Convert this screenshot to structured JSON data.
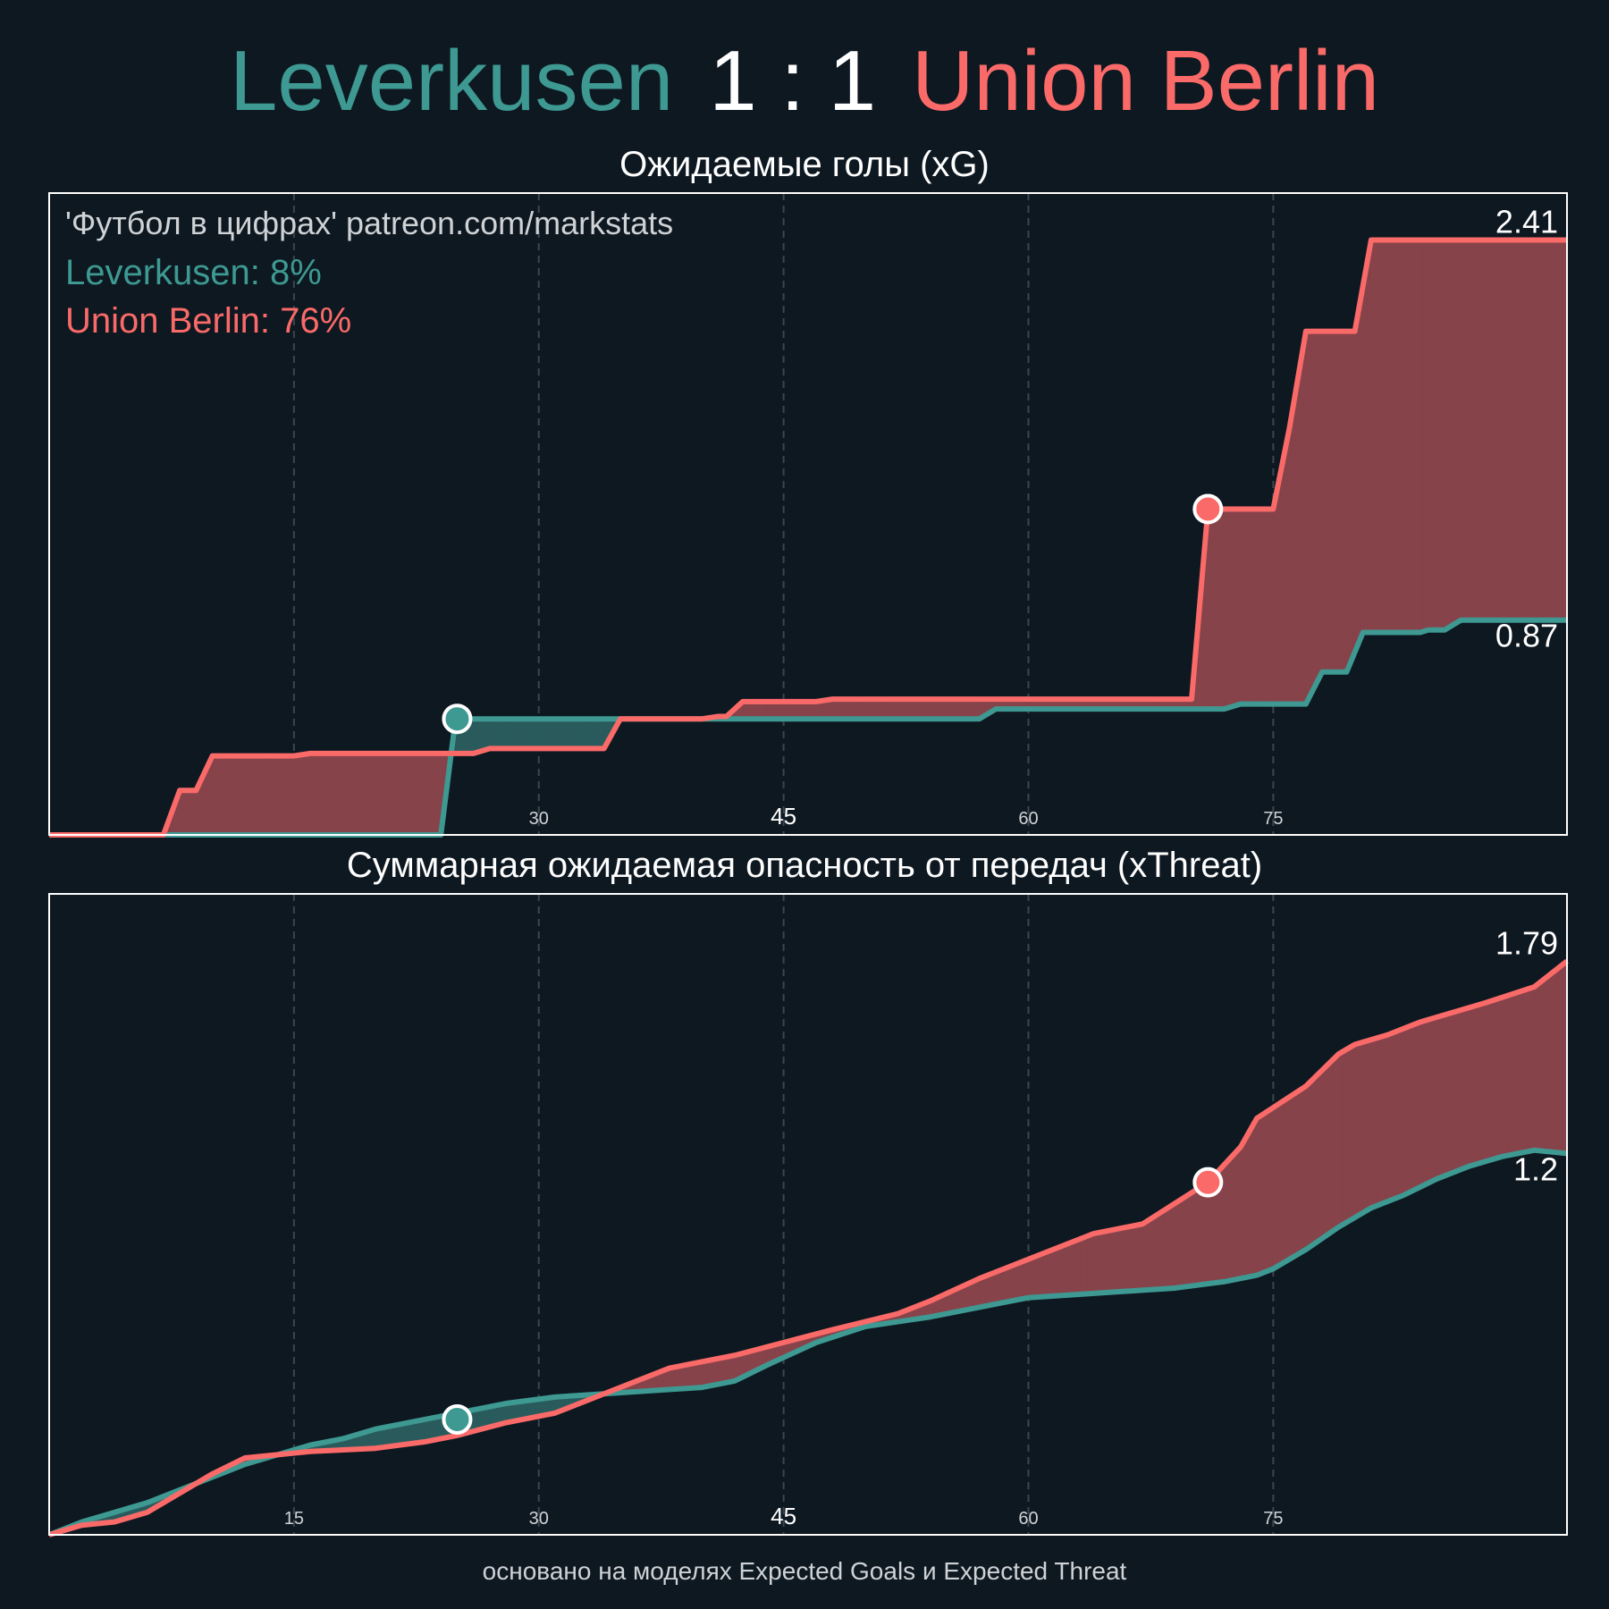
{
  "header": {
    "home_team": "Leverkusen",
    "score": "1 : 1",
    "away_team": "Union Berlin"
  },
  "footer": "основано на моделях Expected Goals и Expected Threat",
  "colors": {
    "background": "#0e1821",
    "home": "#3d9992",
    "away": "#fa6a68",
    "away_fill": "#87434a",
    "home_fill": "#2a5b5c"
  },
  "chart_data": [
    {
      "type": "line",
      "title": "Ожидаемые голы (xG)",
      "watermark": "'Футбол в цифрах' patreon.com/markstats",
      "legend": [
        "Leverkusen: 8%",
        "Union Berlin: 76%"
      ],
      "xlim": [
        0,
        93
      ],
      "ylim": [
        0,
        2.6
      ],
      "x_ticks": [
        "15",
        "30",
        "45",
        "60",
        "75"
      ],
      "x_tick_values": [
        15,
        30,
        45,
        60,
        75
      ],
      "grid": "vertical dashed",
      "end_labels": [
        "0.87",
        "2.41"
      ],
      "goals": [
        {
          "team": "Leverkusen",
          "minute": 25,
          "value": 0.47
        },
        {
          "team": "Union Berlin",
          "minute": 71,
          "value": 1.32
        }
      ],
      "series": [
        {
          "name": "Leverkusen",
          "points": [
            [
              0,
              0
            ],
            [
              24,
              0
            ],
            [
              24.9,
              0.47
            ],
            [
              25.5,
              0.47
            ],
            [
              57,
              0.47
            ],
            [
              58,
              0.51
            ],
            [
              72,
              0.51
            ],
            [
              73,
              0.53
            ],
            [
              77,
              0.53
            ],
            [
              78,
              0.66
            ],
            [
              79.5,
              0.66
            ],
            [
              80.5,
              0.82
            ],
            [
              84,
              0.82
            ],
            [
              84.5,
              0.83
            ],
            [
              85.5,
              0.83
            ],
            [
              86.5,
              0.87
            ],
            [
              93,
              0.87
            ]
          ]
        },
        {
          "name": "Union Berlin",
          "points": [
            [
              0,
              0
            ],
            [
              7,
              0
            ],
            [
              8,
              0.18
            ],
            [
              9,
              0.18
            ],
            [
              10,
              0.32
            ],
            [
              15,
              0.32
            ],
            [
              16,
              0.33
            ],
            [
              26,
              0.33
            ],
            [
              27,
              0.35
            ],
            [
              34,
              0.35
            ],
            [
              35,
              0.47
            ],
            [
              40,
              0.47
            ],
            [
              41,
              0.48
            ],
            [
              41.5,
              0.48
            ],
            [
              42.5,
              0.54
            ],
            [
              47,
              0.54
            ],
            [
              48,
              0.55
            ],
            [
              70,
              0.55
            ],
            [
              71,
              1.32
            ],
            [
              75,
              1.32
            ],
            [
              76,
              1.65
            ],
            [
              77,
              2.04
            ],
            [
              80,
              2.04
            ],
            [
              81,
              2.41
            ],
            [
              93,
              2.41
            ]
          ]
        }
      ]
    },
    {
      "type": "line",
      "title": "Суммарная ожидаемая опасность от передач (xThreat)",
      "xlim": [
        0,
        93
      ],
      "ylim": [
        0,
        2.0
      ],
      "x_ticks": [
        "15",
        "30",
        "45",
        "60",
        "75"
      ],
      "x_tick_values": [
        15,
        30,
        45,
        60,
        75
      ],
      "grid": "vertical dashed",
      "end_labels": [
        "1.2",
        "1.79"
      ],
      "goals": [
        {
          "team": "Leverkusen",
          "minute": 25,
          "value": 0.36
        },
        {
          "team": "Union Berlin",
          "minute": 71,
          "value": 1.1
        }
      ],
      "series": [
        {
          "name": "Leverkusen",
          "points": [
            [
              0,
              0
            ],
            [
              2,
              0.04
            ],
            [
              4,
              0.07
            ],
            [
              6,
              0.1
            ],
            [
              8,
              0.14
            ],
            [
              10,
              0.18
            ],
            [
              12,
              0.22
            ],
            [
              14,
              0.25
            ],
            [
              16,
              0.28
            ],
            [
              18,
              0.3
            ],
            [
              20,
              0.33
            ],
            [
              22,
              0.35
            ],
            [
              25,
              0.38
            ],
            [
              28,
              0.41
            ],
            [
              31,
              0.43
            ],
            [
              34,
              0.44
            ],
            [
              37,
              0.45
            ],
            [
              40,
              0.46
            ],
            [
              42,
              0.48
            ],
            [
              44,
              0.53
            ],
            [
              47,
              0.6
            ],
            [
              50,
              0.65
            ],
            [
              54,
              0.68
            ],
            [
              57,
              0.71
            ],
            [
              60,
              0.74
            ],
            [
              63,
              0.75
            ],
            [
              66,
              0.76
            ],
            [
              69,
              0.77
            ],
            [
              72,
              0.79
            ],
            [
              74,
              0.81
            ],
            [
              75,
              0.83
            ],
            [
              77,
              0.89
            ],
            [
              79,
              0.96
            ],
            [
              81,
              1.02
            ],
            [
              83,
              1.06
            ],
            [
              85,
              1.11
            ],
            [
              87,
              1.15
            ],
            [
              89,
              1.18
            ],
            [
              91,
              1.2
            ],
            [
              93,
              1.19
            ]
          ]
        },
        {
          "name": "Union Berlin",
          "points": [
            [
              0,
              0
            ],
            [
              2,
              0.03
            ],
            [
              4,
              0.04
            ],
            [
              6,
              0.07
            ],
            [
              8,
              0.13
            ],
            [
              10,
              0.19
            ],
            [
              12,
              0.24
            ],
            [
              14,
              0.25
            ],
            [
              16,
              0.26
            ],
            [
              18,
              0.265
            ],
            [
              20,
              0.27
            ],
            [
              23,
              0.29
            ],
            [
              25,
              0.31
            ],
            [
              28,
              0.35
            ],
            [
              31,
              0.38
            ],
            [
              34,
              0.44
            ],
            [
              38,
              0.52
            ],
            [
              42,
              0.56
            ],
            [
              45,
              0.6
            ],
            [
              48,
              0.64
            ],
            [
              52,
              0.69
            ],
            [
              54,
              0.73
            ],
            [
              57,
              0.8
            ],
            [
              59,
              0.84
            ],
            [
              61,
              0.88
            ],
            [
              64,
              0.94
            ],
            [
              67,
              0.97
            ],
            [
              71,
              1.1
            ],
            [
              73,
              1.21
            ],
            [
              74,
              1.3
            ],
            [
              77,
              1.4
            ],
            [
              79,
              1.5
            ],
            [
              80,
              1.53
            ],
            [
              82,
              1.56
            ],
            [
              84,
              1.6
            ],
            [
              86,
              1.63
            ],
            [
              88,
              1.66
            ],
            [
              91,
              1.71
            ],
            [
              93,
              1.79
            ]
          ]
        }
      ]
    }
  ]
}
